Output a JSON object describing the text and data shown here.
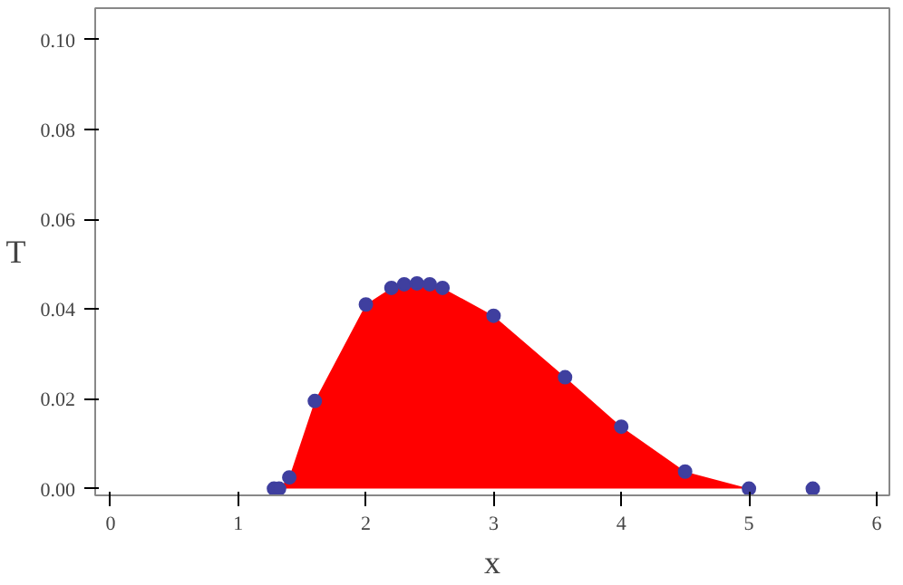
{
  "chart_data": {
    "type": "area",
    "xlabel": "x",
    "ylabel": "T",
    "x": [
      1.28,
      1.32,
      1.4,
      1.6,
      2.0,
      2.2,
      2.3,
      2.4,
      2.5,
      2.6,
      3.0,
      3.56,
      4.0,
      4.5,
      5.0,
      5.5
    ],
    "series": [
      {
        "color": "#ff0000",
        "values": [
          0,
          0,
          0.0025,
          0.0195,
          0.041,
          0.0447,
          0.0455,
          0.0457,
          0.0455,
          0.0447,
          0.0385,
          0.0248,
          0.0138,
          0.0038,
          0,
          0
        ]
      },
      {
        "type": "scatter",
        "color": "#3f3f9f",
        "marker": "circle",
        "values": [
          0,
          0,
          0.0025,
          0.0195,
          0.041,
          0.0447,
          0.0455,
          0.0457,
          0.0455,
          0.0447,
          0.0385,
          0.0248,
          0.0138,
          0.0038,
          0,
          0
        ]
      }
    ],
    "grid": false,
    "xlim": [
      -0.12,
      6.1
    ],
    "ylim": [
      -0.0015,
      0.107
    ],
    "xticks": [
      0,
      1,
      2,
      3,
      4,
      5,
      6
    ],
    "yticks": [
      {
        "value": 0,
        "label": "0.00"
      },
      {
        "value": 0.02,
        "label": "0.02"
      },
      {
        "value": 0.04,
        "label": "0.04"
      },
      {
        "value": 0.06,
        "label": "0.06"
      },
      {
        "value": 0.08,
        "label": "0.08"
      },
      {
        "value": 0.1,
        "label": "0.10"
      }
    ]
  }
}
